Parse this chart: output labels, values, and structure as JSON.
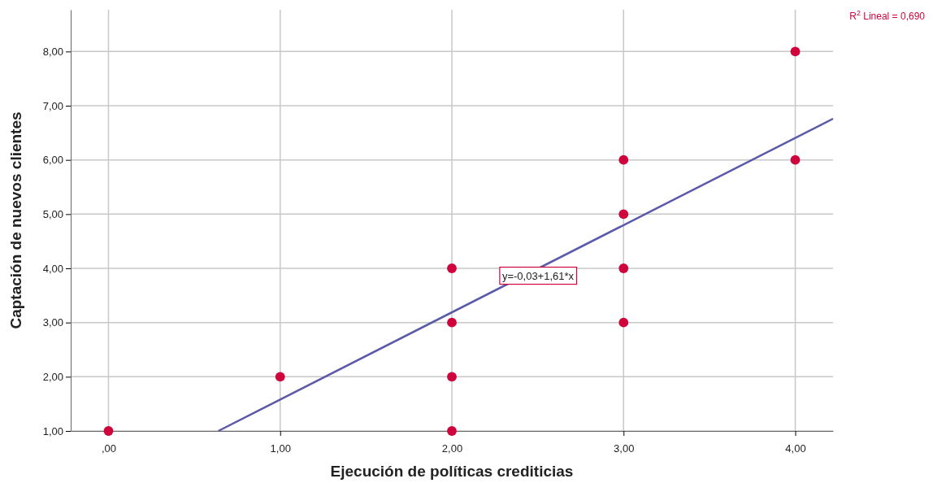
{
  "chart_data": {
    "type": "scatter",
    "xlabel": "Ejecución de políticas crediticias",
    "ylabel": "Captación de nuevos clientes",
    "xlim": [
      -0.22,
      4.22
    ],
    "ylim": [
      1,
      8.77
    ],
    "xticks": [
      {
        "value": 0,
        "label": ",00"
      },
      {
        "value": 1,
        "label": "1,00"
      },
      {
        "value": 2,
        "label": "2,00"
      },
      {
        "value": 3,
        "label": "3,00"
      },
      {
        "value": 4,
        "label": "4,00"
      }
    ],
    "yticks": [
      {
        "value": 1,
        "label": "1,00"
      },
      {
        "value": 2,
        "label": "2,00"
      },
      {
        "value": 3,
        "label": "3,00"
      },
      {
        "value": 4,
        "label": "4,00"
      },
      {
        "value": 5,
        "label": "5,00"
      },
      {
        "value": 6,
        "label": "6,00"
      },
      {
        "value": 7,
        "label": "7,00"
      },
      {
        "value": 8,
        "label": "8,00"
      }
    ],
    "grid": true,
    "series": [
      {
        "marker": "circle",
        "color": "#d0043c",
        "x": [
          0,
          1,
          2,
          2,
          2,
          2,
          3,
          3,
          3,
          3,
          4,
          4
        ],
        "values": [
          1,
          2,
          4,
          3,
          2,
          1,
          6,
          5,
          4,
          3,
          8,
          6
        ]
      },
      {
        "type": "line",
        "color": "#5a5aa8",
        "x": [
          0.64,
          4.22
        ],
        "values": [
          1.0,
          6.76
        ],
        "line_style": "solid"
      }
    ],
    "annotations": [
      "y=-0,03+1,61*x",
      "R$^{2}$ Lineal = 0,690"
    ]
  }
}
